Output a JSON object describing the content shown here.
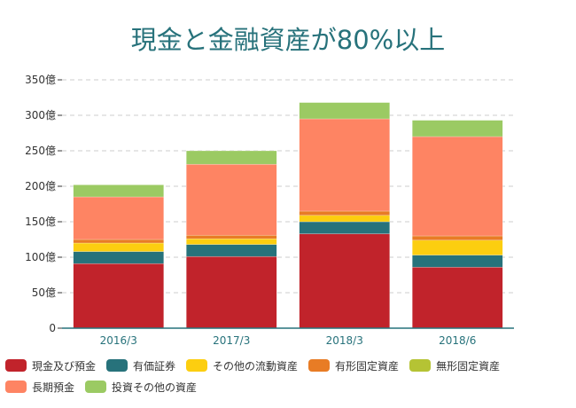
{
  "chart_data": {
    "type": "bar",
    "stacked": true,
    "title": "現金と金融資産が80%以上",
    "categories": [
      "2016/3",
      "2017/3",
      "2018/3",
      "2018/6"
    ],
    "ylim": [
      0,
      350
    ],
    "yticks": [
      0,
      50,
      100,
      150,
      200,
      250,
      300,
      350
    ],
    "ytick_suffix": "億",
    "grid": true,
    "legend_position": "bottom",
    "series": [
      {
        "name": "現金及び預金",
        "color": "#c1232b",
        "values": [
          91,
          101,
          133,
          86
        ]
      },
      {
        "name": "有価証券",
        "color": "#27727b",
        "values": [
          17,
          17,
          17,
          17
        ]
      },
      {
        "name": "その他の流動資産",
        "color": "#fcce10",
        "values": [
          12,
          8,
          9,
          21
        ]
      },
      {
        "name": "有形固定資産",
        "color": "#e87c25",
        "values": [
          5,
          5,
          6,
          6
        ]
      },
      {
        "name": "無形固定資産",
        "color": "#b5c334",
        "values": [
          0,
          0,
          0,
          0
        ]
      },
      {
        "name": "長期預金",
        "color": "#fe8463",
        "values": [
          60,
          100,
          130,
          140
        ]
      },
      {
        "name": "投資その他の資産",
        "color": "#9bca63",
        "values": [
          17,
          19,
          23,
          23
        ]
      }
    ]
  }
}
